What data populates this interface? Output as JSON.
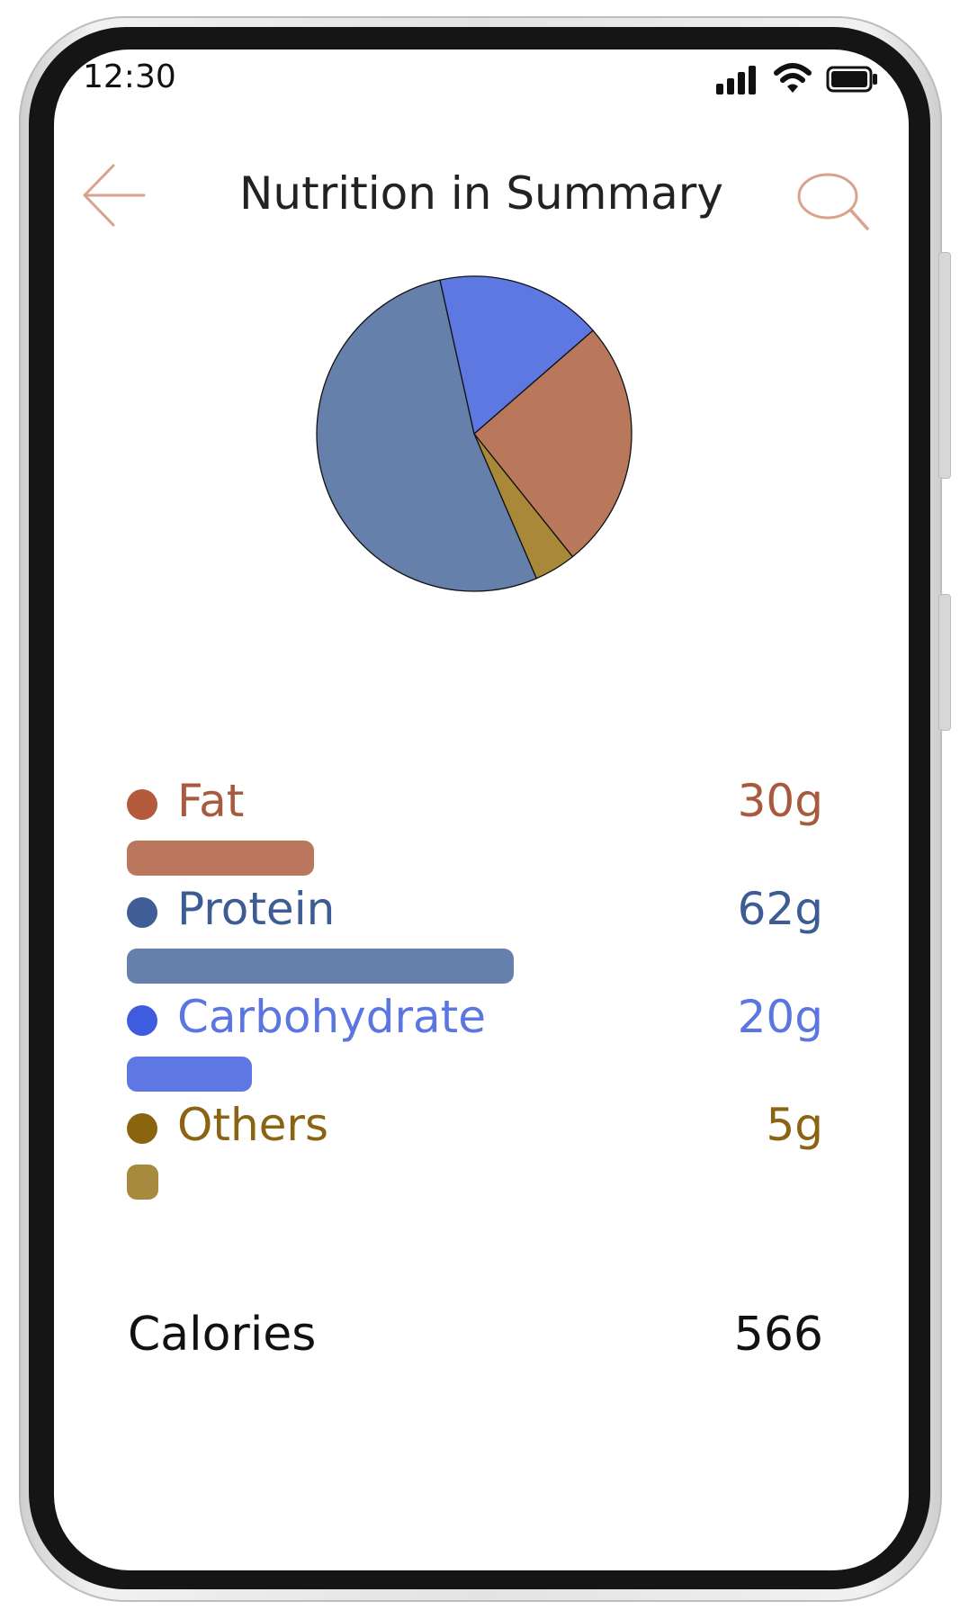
{
  "status_bar": {
    "time": "12:30"
  },
  "header": {
    "title": "Nutrition in Summary",
    "back_icon": "back-arrow-icon",
    "search_icon": "search-icon",
    "accent_color": "#d9a28c"
  },
  "nutrients": [
    {
      "label": "Fat",
      "value": "30g",
      "grams": 30,
      "text_color": "#a85a3e",
      "dot_color": "#b45b3e",
      "bar_color": "#bb775e"
    },
    {
      "label": "Protein",
      "value": "62g",
      "grams": 62,
      "text_color": "#3e5c94",
      "dot_color": "#3f5d96",
      "bar_color": "#6680ad"
    },
    {
      "label": "Carbohydrate",
      "value": "20g",
      "grams": 20,
      "text_color": "#5b76e0",
      "dot_color": "#3e5ce0",
      "bar_color": "#5e77e3"
    },
    {
      "label": "Others",
      "value": "5g",
      "grams": 5,
      "text_color": "#8a6412",
      "dot_color": "#8a640f",
      "bar_color": "#a88a3e"
    }
  ],
  "calories": {
    "label": "Calories",
    "value": "566"
  },
  "chart_data": {
    "type": "pie",
    "title": "",
    "labels": [
      "Fat",
      "Protein",
      "Carbohydrate",
      "Others"
    ],
    "values": [
      30,
      62,
      20,
      5
    ],
    "colors": [
      "#b9775c",
      "#6680ac",
      "#5e78e2",
      "#a98839"
    ]
  }
}
